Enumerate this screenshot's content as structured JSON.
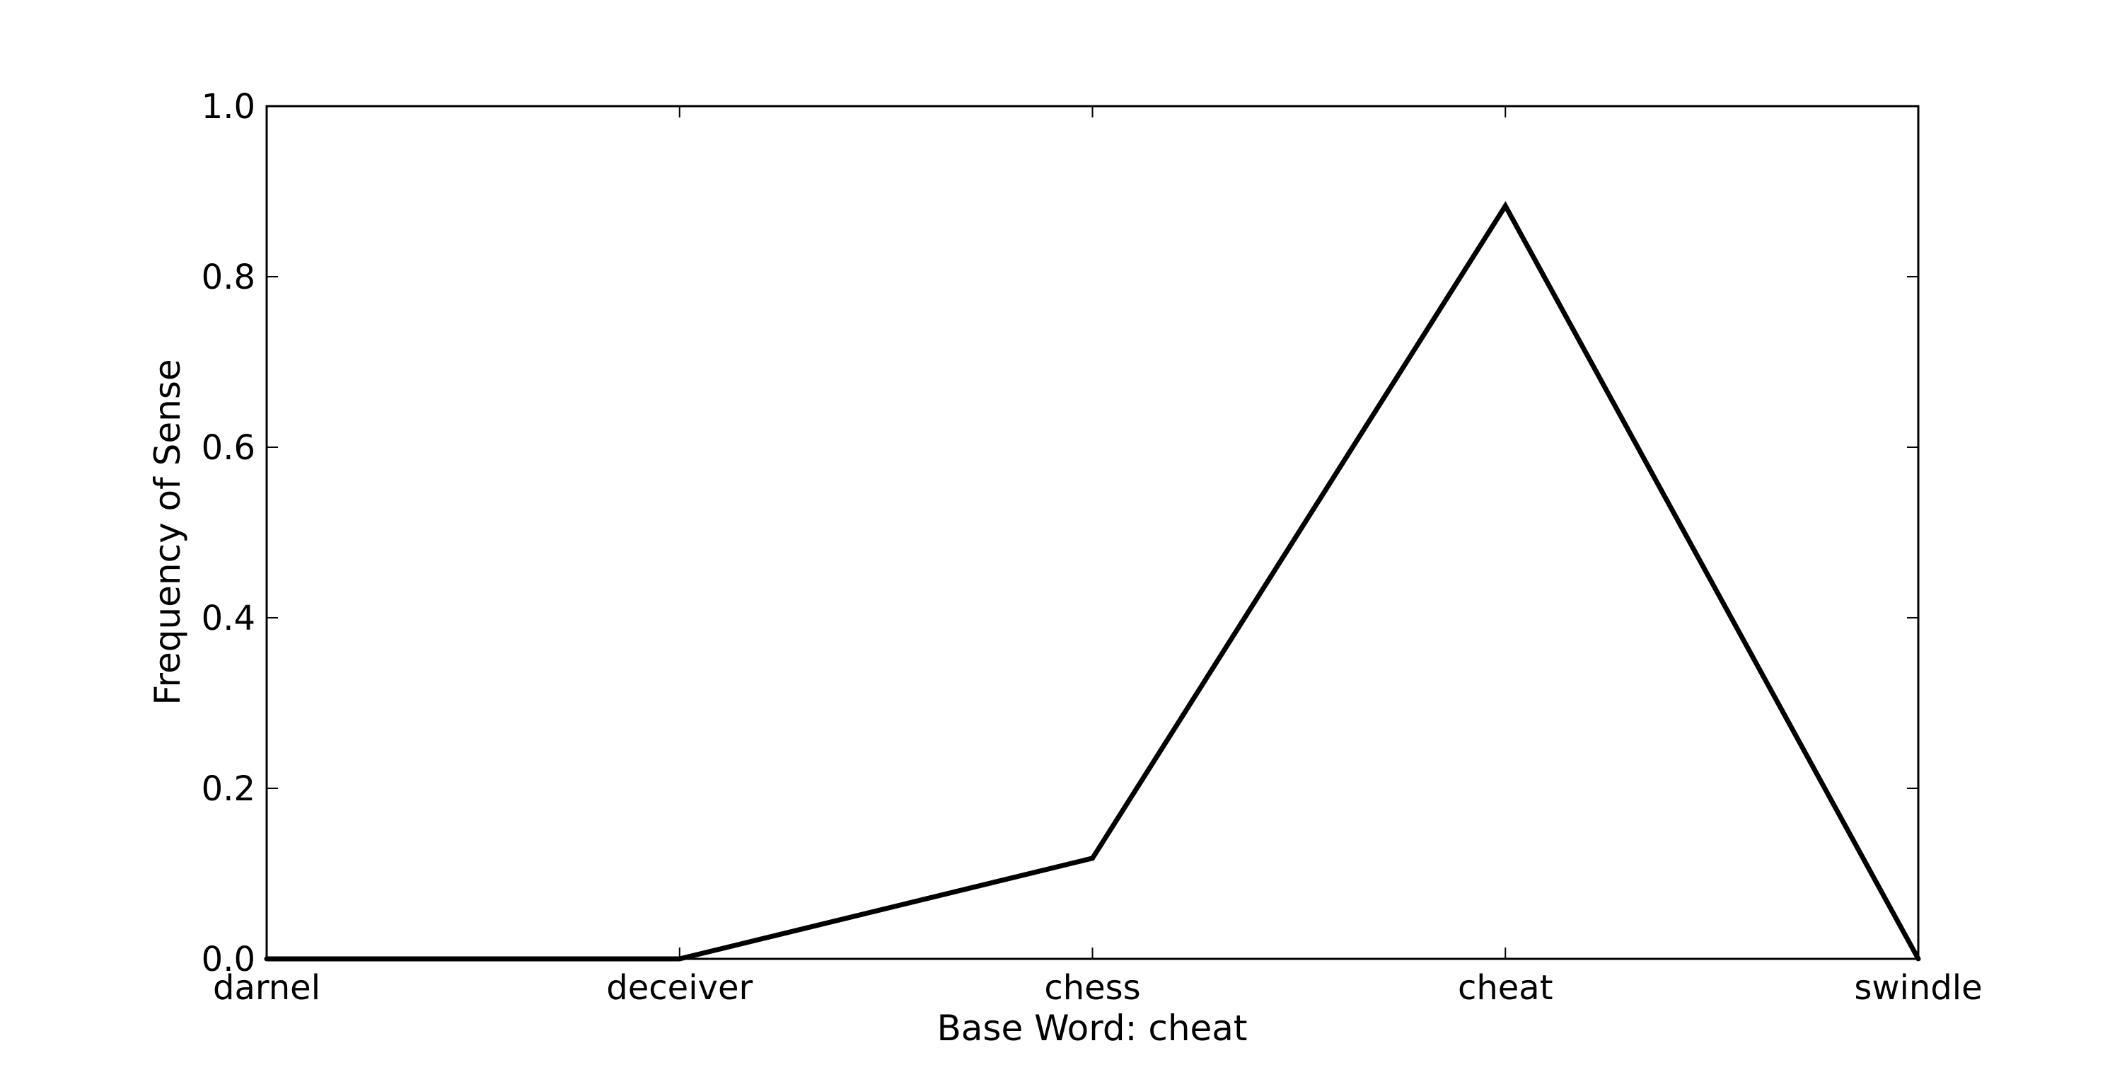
{
  "chart_data": {
    "type": "line",
    "title": "",
    "xlabel": "Base Word: cheat",
    "ylabel": "Frequency of Sense",
    "categories": [
      "darnel",
      "deceiver",
      "chess",
      "cheat",
      "swindle"
    ],
    "series": [
      {
        "values": [
          0.0,
          0.0,
          0.118,
          0.883,
          0.0
        ]
      }
    ],
    "ylim": [
      0,
      1.0
    ],
    "yticks": [
      "0.0",
      "0.2",
      "0.4",
      "0.6",
      "0.8",
      "1.0"
    ],
    "ytick_values": [
      0.0,
      0.2,
      0.4,
      0.6,
      0.8,
      1.0
    ],
    "grid": false,
    "line_color": "#000000"
  }
}
